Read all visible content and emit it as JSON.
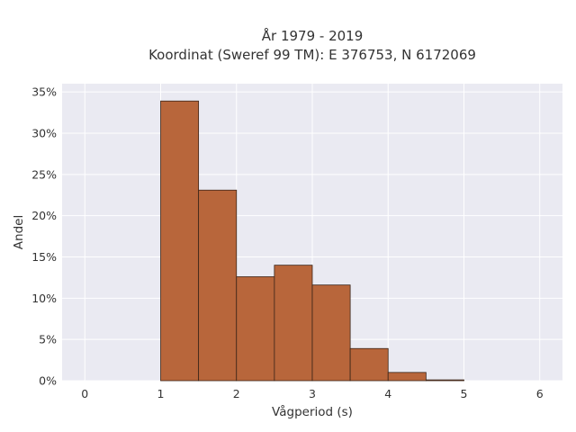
{
  "chart_data": {
    "type": "bar",
    "title_line1": "År 1979 - 2019",
    "title_line2": "Koordinat (Sweref 99 TM): E 376753, N 6172069",
    "xlabel": "Vågperiod (s)",
    "ylabel": "Andel",
    "xlim": [
      -0.3,
      6.3
    ],
    "ylim": [
      0,
      0.36
    ],
    "xticks": [
      0,
      1,
      2,
      3,
      4,
      5,
      6
    ],
    "xtick_labels": [
      "0",
      "1",
      "2",
      "3",
      "4",
      "5",
      "6"
    ],
    "yticks": [
      0,
      0.05,
      0.1,
      0.15,
      0.2,
      0.25,
      0.3,
      0.35
    ],
    "ytick_labels": [
      "0%",
      "5%",
      "10%",
      "15%",
      "20%",
      "25%",
      "30%",
      "35%"
    ],
    "bin_width": 0.5,
    "bins": [
      {
        "start": 1.0,
        "end": 1.5,
        "value": 0.339
      },
      {
        "start": 1.5,
        "end": 2.0,
        "value": 0.231
      },
      {
        "start": 2.0,
        "end": 2.5,
        "value": 0.126
      },
      {
        "start": 2.5,
        "end": 3.0,
        "value": 0.14
      },
      {
        "start": 3.0,
        "end": 3.5,
        "value": 0.116
      },
      {
        "start": 3.5,
        "end": 4.0,
        "value": 0.039
      },
      {
        "start": 4.0,
        "end": 4.5,
        "value": 0.01
      },
      {
        "start": 4.5,
        "end": 5.0,
        "value": 0.001
      }
    ],
    "grid": true,
    "colors": {
      "bar_fill": "#b8663b",
      "bar_edge": "#3a2418",
      "plot_bg": "#eaeaf2",
      "grid": "#ffffff"
    }
  }
}
